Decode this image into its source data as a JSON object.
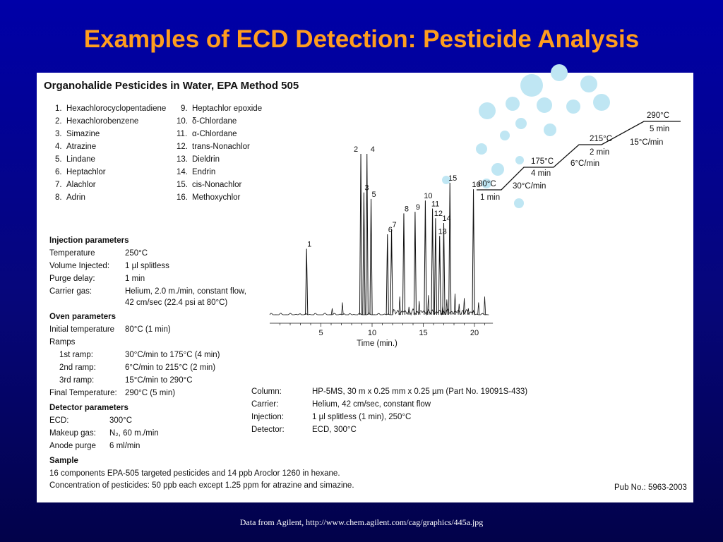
{
  "slide": {
    "title": "Examples of ECD Detection: Pesticide Analysis",
    "footer": "Data from Agilent, http://www.chem.agilent.com/cag/graphics/445a.jpg"
  },
  "panel": {
    "heading": "Organohalide Pesticides in Water, EPA Method 505",
    "pub_no": "Pub No.: 5963-2003",
    "compounds": [
      {
        "num": "1.",
        "name": "Hexachlorocyclopentadiene"
      },
      {
        "num": "2.",
        "name": "Hexachlorobenzene"
      },
      {
        "num": "3.",
        "name": "Simazine"
      },
      {
        "num": "4.",
        "name": "Atrazine"
      },
      {
        "num": "5.",
        "name": "Lindane"
      },
      {
        "num": "6.",
        "name": "Heptachlor"
      },
      {
        "num": "7.",
        "name": "Alachlor"
      },
      {
        "num": "8.",
        "name": "Adrin"
      },
      {
        "num": "9.",
        "name": "Heptachlor epoxide"
      },
      {
        "num": "10.",
        "name": "δ-Chlordane"
      },
      {
        "num": "11.",
        "name": "α-Chlordane"
      },
      {
        "num": "12.",
        "name": "trans-Nonachlor"
      },
      {
        "num": "13.",
        "name": "Dieldrin"
      },
      {
        "num": "14.",
        "name": "Endrin"
      },
      {
        "num": "15.",
        "name": "cis-Nonachlor"
      },
      {
        "num": "16.",
        "name": "Methoxychlor"
      }
    ],
    "injection": {
      "heading": "Injection parameters",
      "rows": [
        {
          "label": "Temperature",
          "value": "250°C"
        },
        {
          "label": "Volume Injected:",
          "value": "1 µl splitless"
        },
        {
          "label": "Purge delay:",
          "value": "1 min"
        },
        {
          "label": "Carrier gas:",
          "value": "Helium, 2.0 m./min, constant flow,"
        }
      ],
      "carrier_cont": "42 cm/sec (22.4 psi at 80°C)"
    },
    "oven": {
      "heading": "Oven parameters",
      "initial_label": "Initial temperature",
      "initial_value": "80°C (1 min)",
      "ramps_label": "Ramps",
      "ramps": [
        {
          "label": "1st ramp:",
          "value": "30°C/min to 175°C (4 min)"
        },
        {
          "label": "2nd ramp:",
          "value": "6°C/min to 215°C (2 min)"
        },
        {
          "label": "3rd ramp:",
          "value": "15°C/min to 290°C"
        }
      ],
      "final_label": "Final Temperature:",
      "final_value": "290°C (5 min)"
    },
    "detector": {
      "heading": "Detector parameters",
      "rows": [
        {
          "label": "ECD:",
          "value": "300°C"
        },
        {
          "label": "Makeup gas:",
          "value": "N₂, 60 m./min"
        },
        {
          "label": "Anode purge",
          "value": "6 ml/min"
        }
      ]
    },
    "sample": {
      "heading": "Sample",
      "line1": "16 components EPA-505 targeted pesticides and 14 ppb Aroclor 1260 in hexane.",
      "line2": "Concentration of pesticides: 50 ppb each except 1.25 ppm for atrazine and simazine."
    },
    "column_info": [
      {
        "label": "Column:",
        "value": "HP-5MS, 30 m x 0.25 mm x 0.25 µm (Part No. 19091S-433)"
      },
      {
        "label": "Carrier:",
        "value": "Helium, 42 cm/sec, constant flow"
      },
      {
        "label": "Injection:",
        "value": "1 µl splitless (1 min), 250°C"
      },
      {
        "label": "Detector:",
        "value": "ECD, 300°C"
      }
    ],
    "temp_program": [
      {
        "temp": "80°C",
        "hold": "1 min",
        "rate": "30°C/min"
      },
      {
        "temp": "175°C",
        "hold": "4 min",
        "rate": "6°C/min"
      },
      {
        "temp": "215°C",
        "hold": "2 min",
        "rate": "15°C/min"
      },
      {
        "temp": "290°C",
        "hold": "5 min",
        "rate": ""
      }
    ],
    "chromatogram": {
      "xlabel": "Time (min.)",
      "ticks": [
        "5",
        "10",
        "15",
        "20"
      ],
      "peaks": [
        {
          "label": "1",
          "time": 3.6,
          "height": 0.41
        },
        {
          "label": "2",
          "time": 8.9,
          "height": 1.0
        },
        {
          "label": "3",
          "time": 9.2,
          "height": 0.76
        },
        {
          "label": "4",
          "time": 9.5,
          "height": 1.0
        },
        {
          "label": "5",
          "time": 9.9,
          "height": 0.72
        },
        {
          "label": "6",
          "time": 11.5,
          "height": 0.5
        },
        {
          "label": "7",
          "time": 11.9,
          "height": 0.53
        },
        {
          "label": "8",
          "time": 13.1,
          "height": 0.63
        },
        {
          "label": "9",
          "time": 14.2,
          "height": 0.64
        },
        {
          "label": "10",
          "time": 15.2,
          "height": 0.71
        },
        {
          "label": "11",
          "time": 15.9,
          "height": 0.66
        },
        {
          "label": "12",
          "time": 16.2,
          "height": 0.6
        },
        {
          "label": "13",
          "time": 16.6,
          "height": 0.49
        },
        {
          "label": "14",
          "time": 17.0,
          "height": 0.57
        },
        {
          "label": "15",
          "time": 17.6,
          "height": 0.82
        },
        {
          "label": "16",
          "time": 19.9,
          "height": 0.78
        }
      ]
    }
  }
}
